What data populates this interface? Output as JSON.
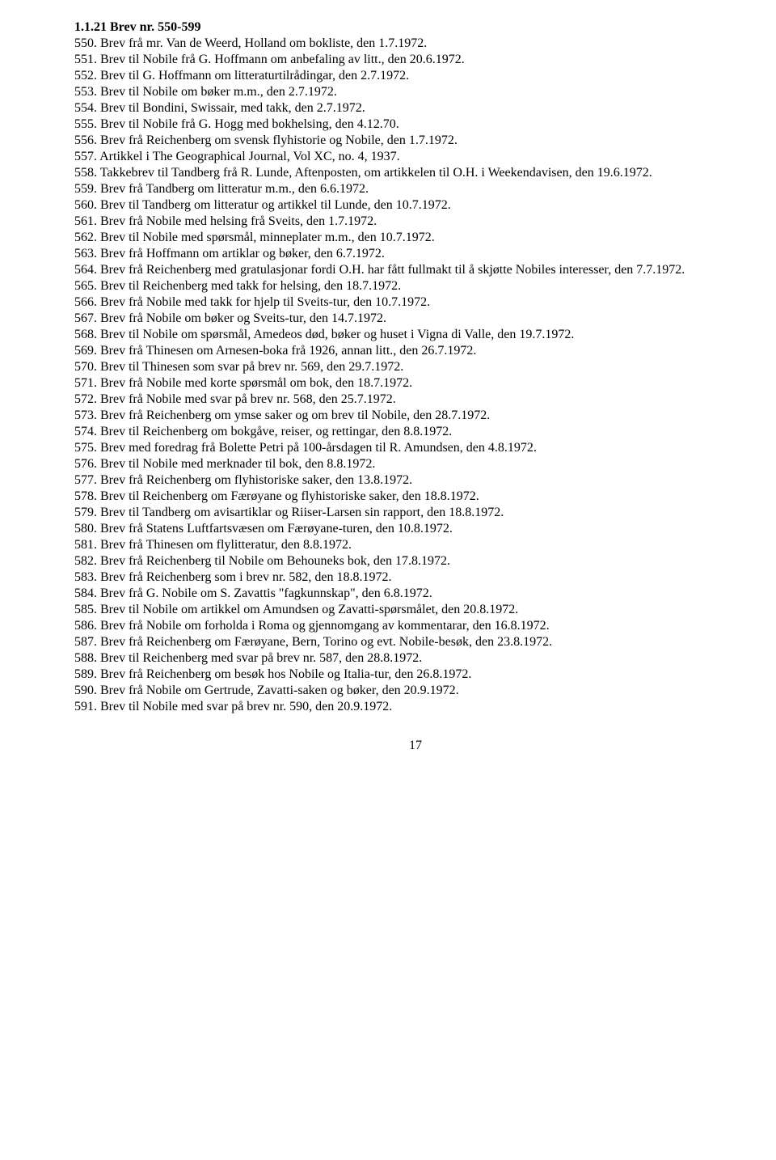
{
  "heading": "1.1.21 Brev nr. 550-599",
  "entries": [
    "550. Brev frå mr. Van de Weerd, Holland om bokliste, den 1.7.1972.",
    "551. Brev til Nobile frå G. Hoffmann om anbefaling av litt., den 20.6.1972.",
    "552. Brev til G. Hoffmann om litteraturtilrådingar, den 2.7.1972.",
    "553. Brev til Nobile om bøker m.m., den 2.7.1972.",
    "554. Brev til Bondini, Swissair, med takk, den 2.7.1972.",
    "555. Brev til Nobile frå G. Hogg med bokhelsing, den 4.12.70.",
    "556. Brev frå Reichenberg om svensk flyhistorie og Nobile, den 1.7.1972.",
    "557. Artikkel i The Geographical Journal, Vol XC, no. 4, 1937.",
    "558. Takkebrev til Tandberg frå R. Lunde, Aftenposten, om artikkelen til O.H. i Weekendavisen, den 19.6.1972.",
    "559. Brev frå Tandberg om litteratur m.m., den 6.6.1972.",
    "560. Brev til Tandberg om litteratur og artikkel til Lunde, den 10.7.1972.",
    "561. Brev frå Nobile med helsing frå Sveits, den 1.7.1972.",
    "562. Brev til Nobile med spørsmål, minneplater m.m., den 10.7.1972.",
    "563. Brev frå Hoffmann om artiklar og bøker, den 6.7.1972.",
    "564. Brev frå Reichenberg med gratulasjonar fordi O.H. har fått fullmakt til å skjøtte Nobiles interesser, den 7.7.1972.",
    "565. Brev til Reichenberg med takk for helsing, den 18.7.1972.",
    "566. Brev frå Nobile med takk for hjelp til Sveits-tur, den 10.7.1972.",
    "567. Brev frå Nobile om bøker og Sveits-tur, den 14.7.1972.",
    "568. Brev til Nobile om spørsmål, Amedeos død, bøker og huset i Vigna di Valle, den 19.7.1972.",
    "569. Brev frå Thinesen om Arnesen-boka frå 1926, annan litt., den 26.7.1972.",
    "570. Brev til Thinesen som svar på brev nr. 569, den 29.7.1972.",
    "571. Brev frå Nobile med korte spørsmål om bok, den 18.7.1972.",
    "572. Brev frå Nobile med svar på brev nr. 568, den 25.7.1972.",
    "573. Brev frå Reichenberg om ymse saker og om brev til Nobile, den 28.7.1972.",
    "574. Brev til Reichenberg om bokgåve, reiser, og rettingar, den 8.8.1972.",
    "575. Brev med foredrag frå Bolette Petri på 100-årsdagen til R. Amundsen, den 4.8.1972.",
    "576. Brev til Nobile med merknader til bok, den 8.8.1972.",
    "577. Brev frå Reichenberg om flyhistoriske saker, den 13.8.1972.",
    "578. Brev til Reichenberg om Færøyane og flyhistoriske saker, den 18.8.1972.",
    "579. Brev til Tandberg om avisartiklar og Riiser-Larsen sin rapport, den 18.8.1972.",
    "580. Brev frå Statens Luftfartsvæsen om Færøyane-turen, den 10.8.1972.",
    "581. Brev frå Thinesen om flylitteratur, den 8.8.1972.",
    "582. Brev frå Reichenberg til Nobile om Behouneks bok, den 17.8.1972.",
    "583. Brev frå Reichenberg som i brev nr. 582, den 18.8.1972.",
    "584. Brev frå G. Nobile om S. Zavattis \"fagkunnskap\", den 6.8.1972.",
    "585. Brev til Nobile om artikkel om Amundsen og Zavatti-spørsmålet, den 20.8.1972.",
    "586. Brev frå Nobile om forholda i Roma og gjennomgang av kommentarar, den 16.8.1972.",
    "587. Brev frå Reichenberg om Færøyane, Bern, Torino og evt. Nobile-besøk, den 23.8.1972.",
    "588. Brev til Reichenberg med svar på brev nr. 587, den 28.8.1972.",
    "589. Brev frå Reichenberg om besøk hos Nobile og Italia-tur, den 26.8.1972.",
    "590. Brev frå Nobile om Gertrude, Zavatti-saken og bøker, den 20.9.1972.",
    "591. Brev til Nobile med svar på brev nr. 590, den 20.9.1972."
  ],
  "page_number": "17"
}
